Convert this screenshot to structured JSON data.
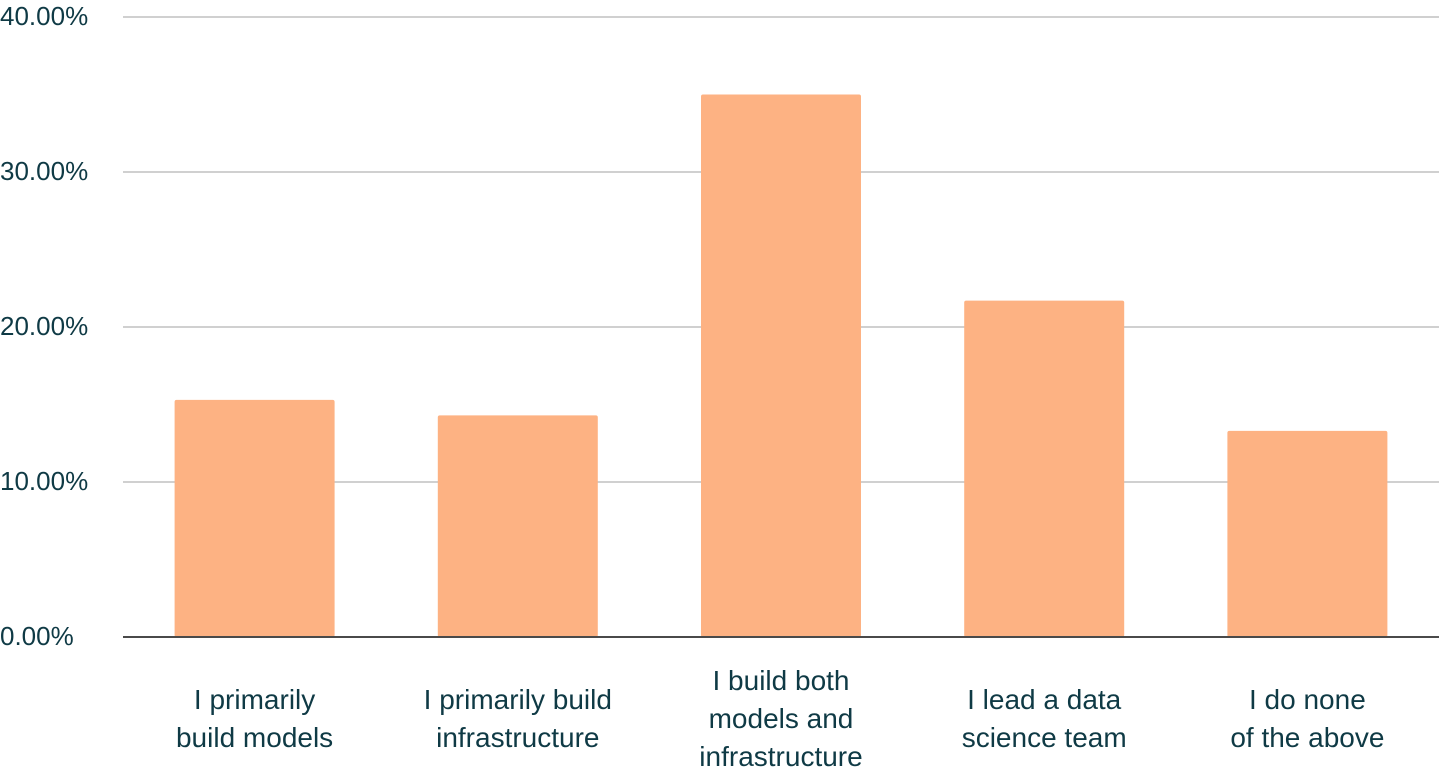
{
  "chart_data": {
    "type": "bar",
    "title": "",
    "xlabel": "",
    "ylabel": "",
    "categories": [
      [
        "I primarily",
        "build models"
      ],
      [
        "I primarily build",
        "infrastructure"
      ],
      [
        "I build both",
        "models and",
        "infrastructure"
      ],
      [
        "I lead a data",
        "science team"
      ],
      [
        "I do none",
        "of the above"
      ]
    ],
    "values": [
      15.3,
      14.3,
      35.0,
      21.7,
      13.3
    ],
    "ylim": [
      0,
      40
    ],
    "yticks": [
      0,
      10,
      20,
      30,
      40
    ],
    "ytick_labels": [
      "0.00%",
      "10.00%",
      "20.00%",
      "30.00%",
      "40.00%"
    ],
    "grid": true,
    "legend": "none",
    "colors": {
      "bar": "#FDB283",
      "grid": "#D0D0D0",
      "axis": "#4A4A4A",
      "text": "#0F3A45"
    }
  }
}
